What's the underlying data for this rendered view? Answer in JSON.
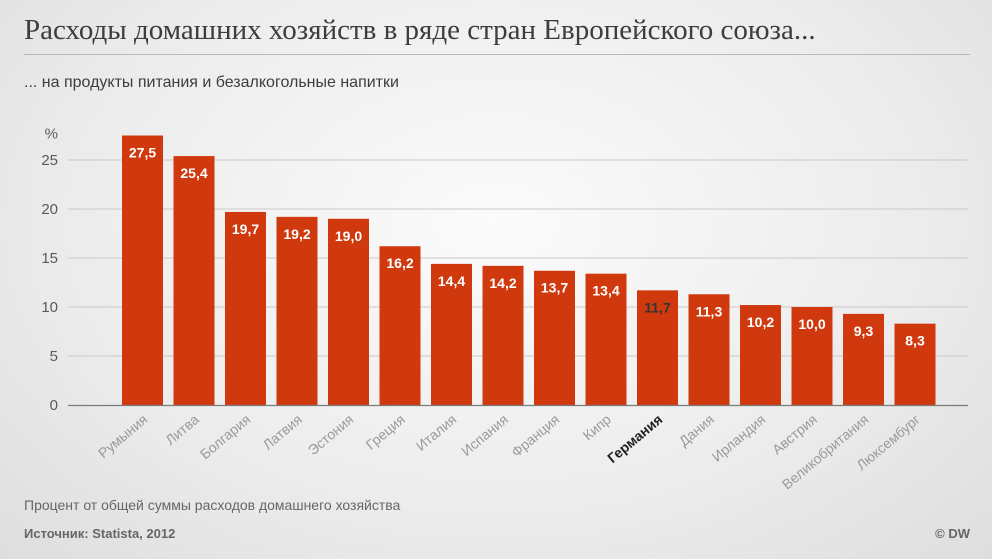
{
  "title": "Расходы домашних хозяйств в ряде стран Европейского союза...",
  "subtitle": "... на продукты питания и безалкогольные напитки",
  "footnote": "Процент от общей суммы расходов домашнего хозяйства",
  "source": "Источник: Statista, 2012",
  "credit": "© DW",
  "colors": {
    "bar": "#d0390e",
    "bar_highlight": "#d0390e",
    "grid": "#c9c9c9",
    "axis": "#7a7a7a"
  },
  "chart_data": {
    "type": "bar",
    "title": "Расходы домашних хозяйств в ряде стран Европейского союза...",
    "subtitle": "... на продукты питания и безалкогольные напитки",
    "ylabel": "%",
    "xlabel": "",
    "ylim": [
      0,
      28
    ],
    "yticks": [
      0,
      5,
      10,
      15,
      20,
      25
    ],
    "grid": true,
    "categories": [
      "Румыния",
      "Литва",
      "Болгария",
      "Латвия",
      "Эстония",
      "Греция",
      "Италия",
      "Испания",
      "Франция",
      "Кипр",
      "Германия",
      "Дания",
      "Ирландия",
      "Австрия",
      "Великобритания",
      "Люксембург"
    ],
    "values": [
      27.5,
      25.4,
      19.7,
      19.2,
      19.0,
      16.2,
      14.4,
      14.2,
      13.7,
      13.4,
      11.7,
      11.3,
      10.2,
      10.0,
      9.3,
      8.3
    ],
    "value_labels": [
      "27,5",
      "25,4",
      "19,7",
      "19,2",
      "19,0",
      "16,2",
      "14,4",
      "14,2",
      "13,7",
      "13,4",
      "11,7",
      "11,3",
      "10,2",
      "10,0",
      "9,3",
      "8,3"
    ],
    "highlight": "Германия"
  }
}
